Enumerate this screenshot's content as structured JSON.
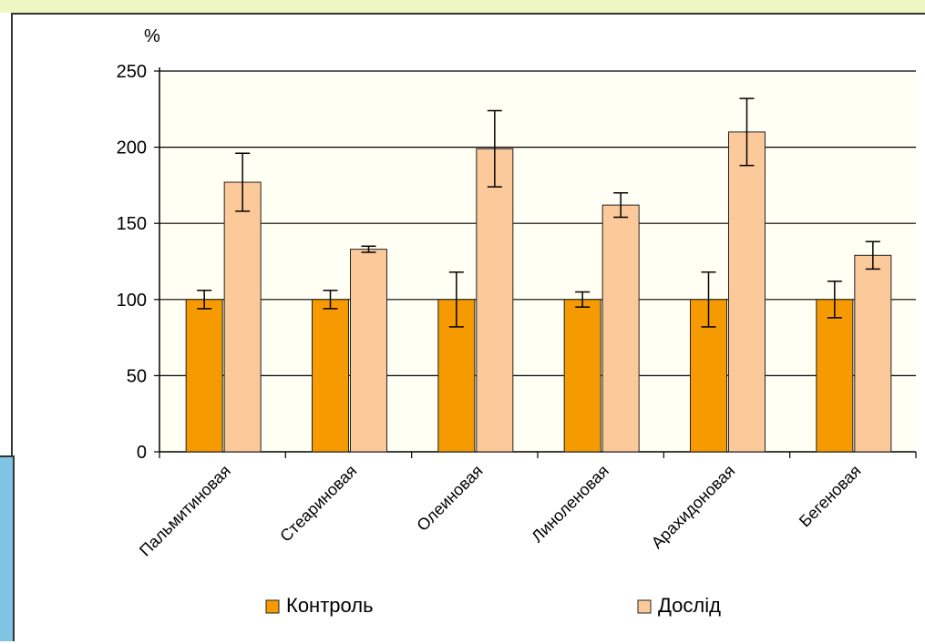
{
  "chart_data": {
    "type": "bar",
    "title": "",
    "xlabel": "",
    "ylabel": "%",
    "ylim": [
      0,
      250
    ],
    "yticks": [
      0,
      50,
      100,
      150,
      200,
      250
    ],
    "grid": true,
    "legend_position": "bottom",
    "categories": [
      "Пальмитиновая",
      "Стеариновая",
      "Олеиновая",
      "Линоленовая",
      "Арахидоновая",
      "Бегеновая"
    ],
    "series": [
      {
        "name": "Контроль",
        "color": "#f59a00",
        "values": [
          100,
          100,
          100,
          100,
          100,
          100
        ],
        "error": [
          6,
          6,
          18,
          5,
          18,
          12
        ]
      },
      {
        "name": "Дослід",
        "color": "#fcc99a",
        "values": [
          177,
          133,
          199,
          162,
          210,
          129
        ],
        "error": [
          19,
          2,
          25,
          8,
          22,
          9
        ]
      }
    ]
  }
}
